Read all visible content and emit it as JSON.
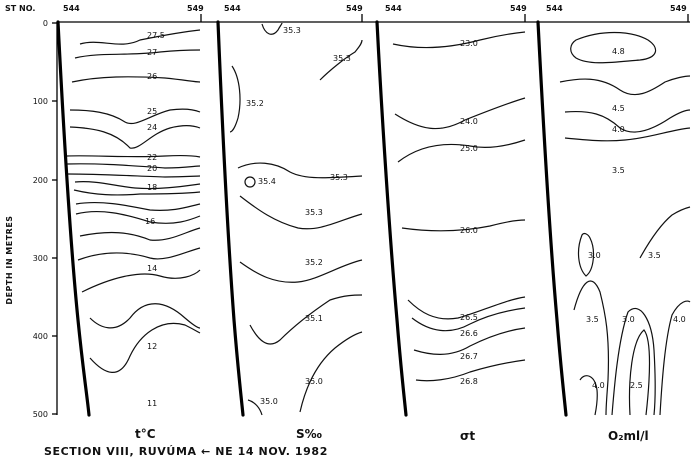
{
  "figure": {
    "caption": "SECTION VIII, RUVÚMA ← NE 14 NOV. 1982",
    "y_axis_label": "DEPTH IN METRES",
    "station_header": "ST NO.",
    "y_ticks": [
      "0",
      "100",
      "200",
      "300",
      "400",
      "500"
    ],
    "colors": {
      "ink": "#111111",
      "background": "#ffffff"
    }
  },
  "panels": [
    {
      "id": "temperature",
      "title": "t°C",
      "station_start": "544",
      "station_end": "549",
      "contour_labels": [
        "27.5",
        "27",
        "26",
        "25",
        "24",
        "22",
        "20",
        "18",
        "16",
        "14",
        "12",
        "11"
      ]
    },
    {
      "id": "salinity",
      "title": "S‰",
      "station_start": "544",
      "station_end": "549",
      "contour_labels": [
        "35.3",
        "35.3",
        "35.2",
        "35.4",
        "35.3",
        "35.3",
        "35.2",
        "35.1",
        "35.0",
        "35.0"
      ]
    },
    {
      "id": "sigma-t",
      "title": "σt",
      "station_start": "544",
      "station_end": "549",
      "contour_labels": [
        "23.0",
        "24.0",
        "25.0",
        "26.0",
        "26.5",
        "26.6",
        "26.7",
        "26.8"
      ]
    },
    {
      "id": "oxygen",
      "title": "O₂ml/l",
      "station_start": "544",
      "station_end": "549",
      "contour_labels": [
        "4.8",
        "4.5",
        "4.0",
        "3.5",
        "3.0",
        "3.5",
        "3.5",
        "3.0",
        "4.0",
        "4.0",
        "2.5"
      ]
    }
  ]
}
